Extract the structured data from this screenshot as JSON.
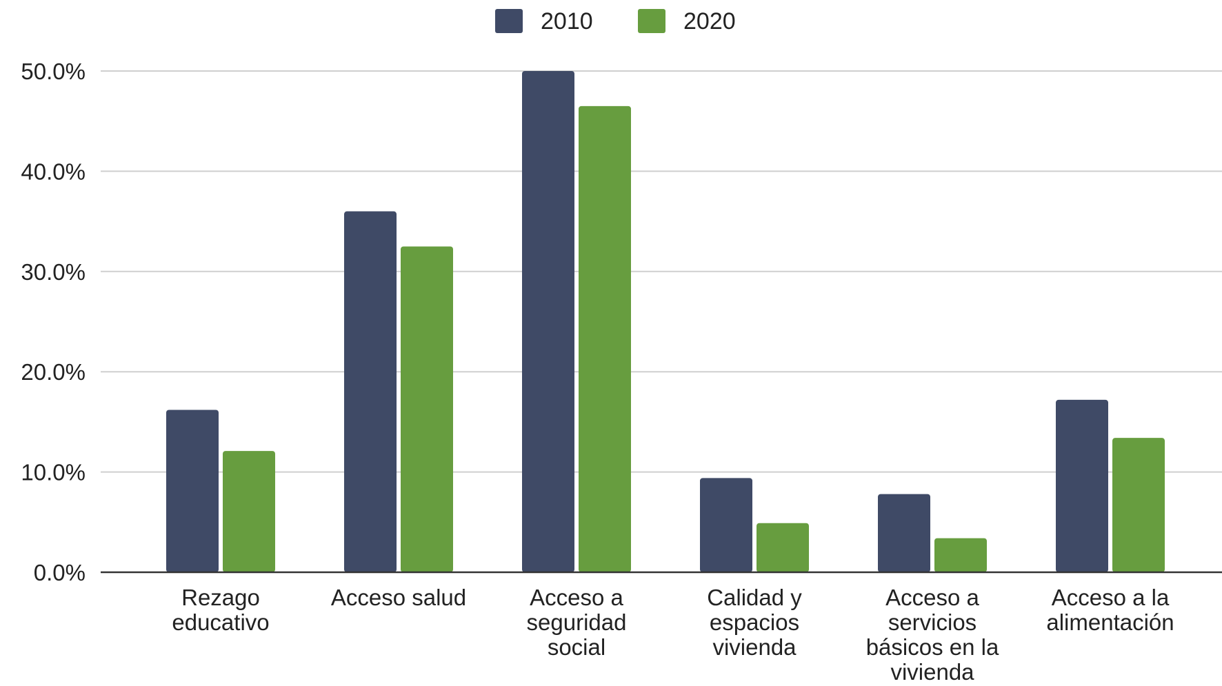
{
  "chart_data": {
    "type": "bar",
    "categories": [
      "Rezago educativo",
      "Acceso salud",
      "Acceso a seguridad social",
      "Calidad y espacios vivienda",
      "Acceso a servicios básicos en la vivienda",
      "Acceso a la alimentación"
    ],
    "category_label_lines": [
      [
        "Rezago",
        "educativo"
      ],
      [
        "Acceso salud"
      ],
      [
        "Acceso a",
        "seguridad",
        "social"
      ],
      [
        "Calidad y",
        "espacios",
        "vivienda"
      ],
      [
        "Acceso a",
        "servicios",
        "básicos en la",
        "vivienda"
      ],
      [
        "Acceso a la",
        "alimentación"
      ]
    ],
    "series": [
      {
        "name": "2010",
        "color": "#3f4a66",
        "values": [
          16.2,
          36.0,
          50.0,
          9.4,
          7.8,
          17.2
        ]
      },
      {
        "name": "2020",
        "color": "#679d3f",
        "values": [
          12.1,
          32.5,
          46.5,
          4.9,
          3.4,
          13.4
        ]
      }
    ],
    "ylim": [
      0,
      50
    ],
    "yticks": [
      "0.0%",
      "10.0%",
      "20.0%",
      "30.0%",
      "40.0%",
      "50.0%"
    ],
    "ytick_values": [
      0,
      10,
      20,
      30,
      40,
      50
    ],
    "grid": true,
    "legend_position": "top-center",
    "title": "",
    "xlabel": "",
    "ylabel": ""
  }
}
